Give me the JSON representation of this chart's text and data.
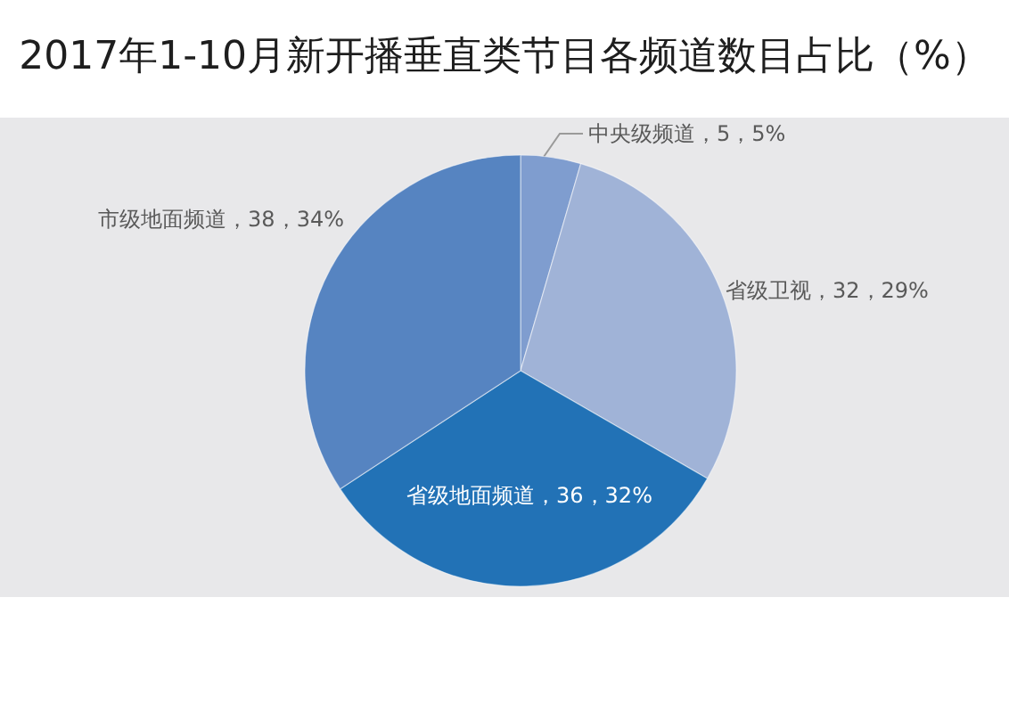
{
  "chart_data": {
    "type": "pie",
    "title": "2017年1-10月新开播垂直类节目各频道数目占比（%）",
    "categories": [
      "中央级频道",
      "省级卫视",
      "省级地面频道",
      "市级地面频道"
    ],
    "values": [
      5,
      32,
      36,
      38
    ],
    "value_labels": [
      "5，5%",
      "32，29%",
      "36，32%",
      "38，34%"
    ],
    "colors": [
      "#7f9dcf",
      "#a0b3d7",
      "#2272b6",
      "#5684c1"
    ]
  }
}
